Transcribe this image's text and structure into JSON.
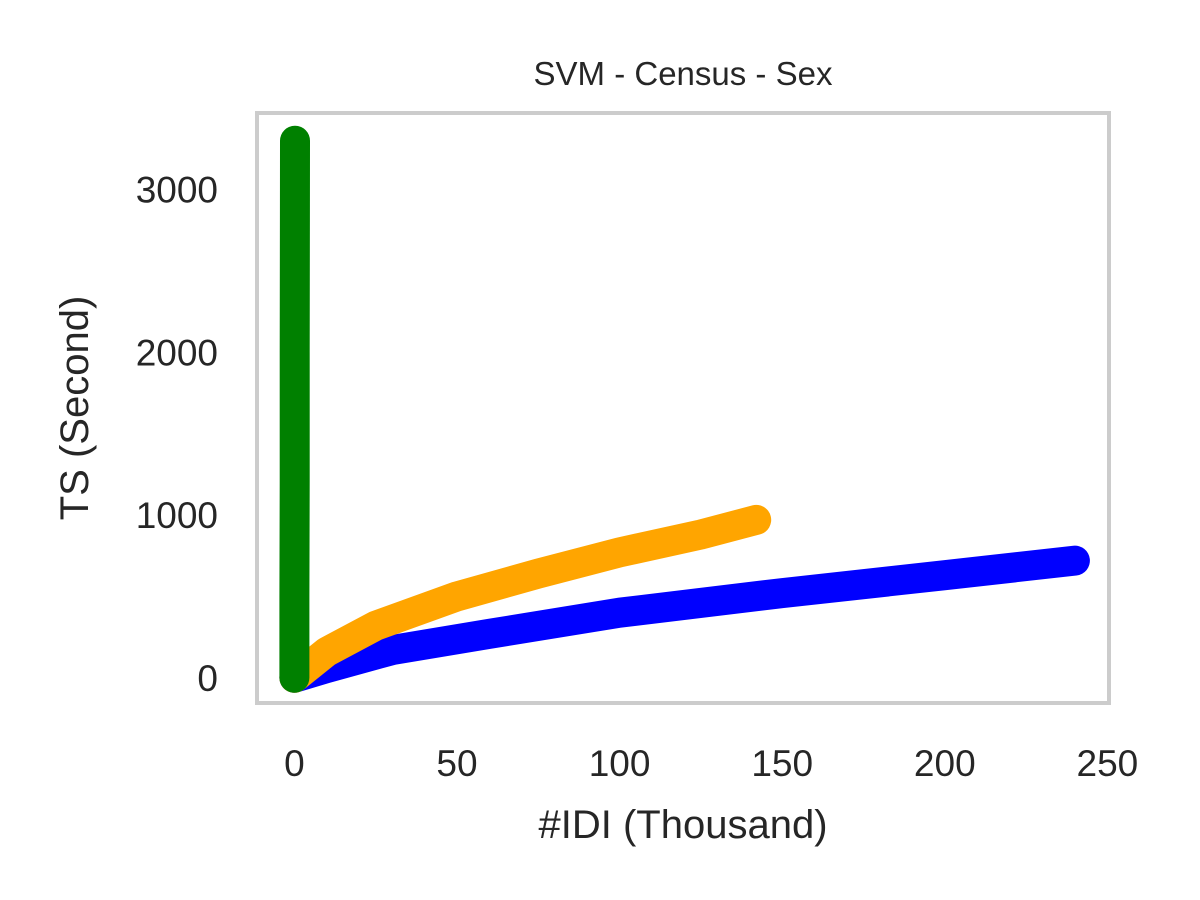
{
  "chart_data": {
    "type": "line",
    "title": "SVM - Census - Sex",
    "xlabel": "#IDI (Thousand)",
    "ylabel": "TS (Second)",
    "xlim": [
      -11.5,
      250.5
    ],
    "ylim": [
      -155,
      3470
    ],
    "xticks": [
      0,
      50,
      100,
      150,
      200,
      250
    ],
    "yticks": [
      0,
      1000,
      2000,
      3000
    ],
    "grid": false,
    "legend": "none",
    "series": [
      {
        "color": "#0000ff",
        "x": [
          0,
          10,
          30,
          60,
          100,
          150,
          200,
          240
        ],
        "y": [
          0,
          60,
          170,
          270,
          400,
          520,
          630,
          720
        ]
      },
      {
        "color": "#ffa500",
        "x": [
          0,
          10,
          25,
          50,
          75,
          100,
          125,
          142
        ],
        "y": [
          0,
          160,
          320,
          500,
          640,
          770,
          880,
          970
        ]
      },
      {
        "color": "#008000",
        "x": [
          0,
          0,
          0.1,
          0.1,
          0.15,
          0.2
        ],
        "y": [
          0,
          500,
          1200,
          2000,
          2800,
          3300
        ]
      }
    ]
  }
}
